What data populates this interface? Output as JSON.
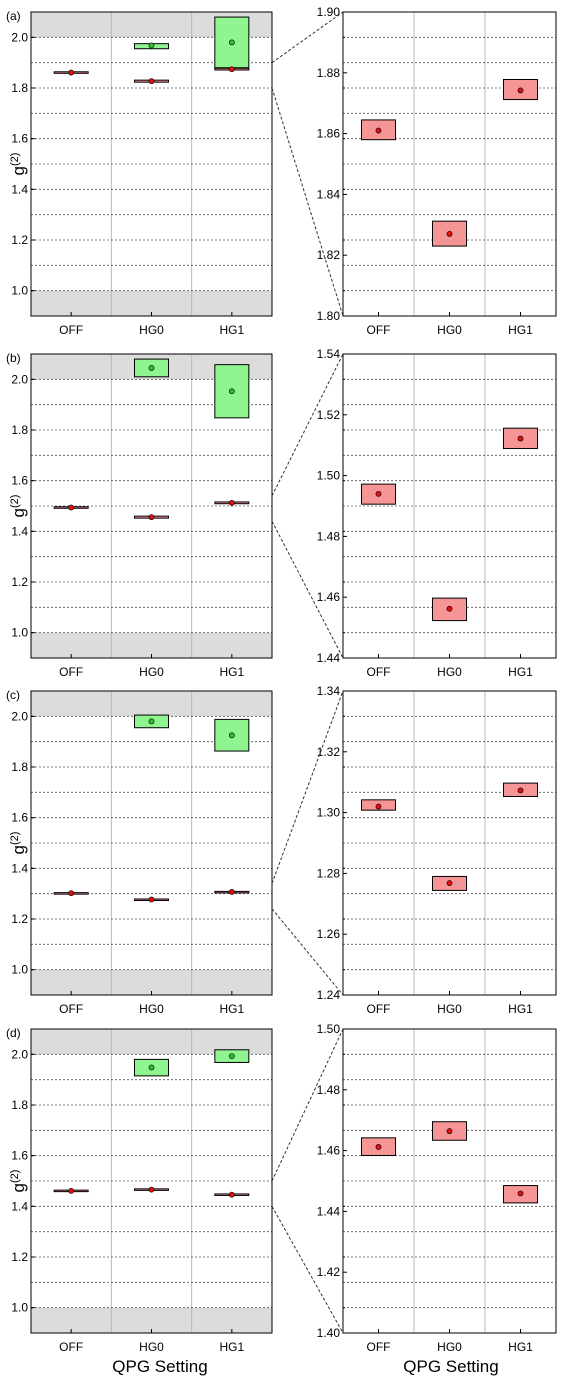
{
  "figure": {
    "xlabel": "QPG Setting",
    "ylabel": "g(2)",
    "categories": [
      "OFF",
      "HG0",
      "HG1"
    ],
    "colors": {
      "red_fill": "#f59595",
      "red_dot": "#e01010",
      "green_fill": "#90f590",
      "green_dot": "#2fbf2f",
      "shade": "#dcdcdc"
    }
  },
  "chart_data": [
    {
      "panel": "(a)",
      "type": "box",
      "ylim": [
        0.9,
        2.1
      ],
      "yticks": [
        "1.0",
        "1.2",
        "1.4",
        "1.6",
        "1.8",
        "2.0"
      ],
      "red": [
        {
          "x": "OFF",
          "value": 1.861,
          "low": 1.858,
          "high": 1.864
        },
        {
          "x": "HG0",
          "value": 1.827,
          "low": 1.823,
          "high": 1.831
        },
        {
          "x": "HG1",
          "value": 1.874,
          "low": 1.871,
          "high": 1.878
        }
      ],
      "green": [
        {
          "x": "HG0",
          "value": 1.968,
          "low": 1.955,
          "high": 1.975
        },
        {
          "x": "HG1",
          "value": 1.98,
          "low": 1.88,
          "high": 2.08
        }
      ]
    },
    {
      "panel": "",
      "type": "box",
      "ylim": [
        1.8,
        1.9
      ],
      "yticks": [
        "1.80",
        "1.82",
        "1.84",
        "1.86",
        "1.88",
        "1.90"
      ],
      "red": [
        {
          "x": "OFF",
          "value": 1.861,
          "low": 1.858,
          "high": 1.8645
        },
        {
          "x": "HG0",
          "value": 1.827,
          "low": 1.823,
          "high": 1.8312
        },
        {
          "x": "HG1",
          "value": 1.8742,
          "low": 1.8712,
          "high": 1.8778
        }
      ]
    },
    {
      "panel": "(b)",
      "type": "box",
      "ylim": [
        0.9,
        2.1
      ],
      "yticks": [
        "1.0",
        "1.2",
        "1.4",
        "1.6",
        "1.8",
        "2.0"
      ],
      "red": [
        {
          "x": "OFF",
          "value": 1.494,
          "low": 1.491,
          "high": 1.497
        },
        {
          "x": "HG0",
          "value": 1.456,
          "low": 1.452,
          "high": 1.46
        },
        {
          "x": "HG1",
          "value": 1.512,
          "low": 1.509,
          "high": 1.516
        }
      ],
      "green": [
        {
          "x": "HG0",
          "value": 2.045,
          "low": 2.01,
          "high": 2.08
        },
        {
          "x": "HG1",
          "value": 1.953,
          "low": 1.848,
          "high": 2.058
        }
      ]
    },
    {
      "panel": "",
      "type": "box",
      "ylim": [
        1.44,
        1.54
      ],
      "yticks": [
        "1.44",
        "1.46",
        "1.48",
        "1.50",
        "1.52",
        "1.54"
      ],
      "red": [
        {
          "x": "OFF",
          "value": 1.494,
          "low": 1.4906,
          "high": 1.4972
        },
        {
          "x": "HG0",
          "value": 1.4562,
          "low": 1.4523,
          "high": 1.4597
        },
        {
          "x": "HG1",
          "value": 1.5122,
          "low": 1.5089,
          "high": 1.5156
        }
      ]
    },
    {
      "panel": "(c)",
      "type": "box",
      "ylim": [
        0.9,
        2.1
      ],
      "yticks": [
        "1.0",
        "1.2",
        "1.4",
        "1.6",
        "1.8",
        "2.0"
      ],
      "red": [
        {
          "x": "OFF",
          "value": 1.302,
          "low": 1.3,
          "high": 1.304
        },
        {
          "x": "HG0",
          "value": 1.277,
          "low": 1.274,
          "high": 1.279
        },
        {
          "x": "HG1",
          "value": 1.307,
          "low": 1.305,
          "high": 1.309
        }
      ],
      "green": [
        {
          "x": "HG0",
          "value": 1.98,
          "low": 1.955,
          "high": 2.005
        },
        {
          "x": "HG1",
          "value": 1.925,
          "low": 1.863,
          "high": 1.988
        }
      ]
    },
    {
      "panel": "",
      "type": "box",
      "ylim": [
        1.24,
        1.34
      ],
      "yticks": [
        "1.24",
        "1.26",
        "1.28",
        "1.30",
        "1.32",
        "1.34"
      ],
      "red": [
        {
          "x": "OFF",
          "value": 1.302,
          "low": 1.3008,
          "high": 1.3042
        },
        {
          "x": "HG0",
          "value": 1.2768,
          "low": 1.2744,
          "high": 1.279
        },
        {
          "x": "HG1",
          "value": 1.3073,
          "low": 1.3053,
          "high": 1.3097
        }
      ]
    },
    {
      "panel": "(d)",
      "type": "box",
      "ylim": [
        0.9,
        2.1
      ],
      "yticks": [
        "1.0",
        "1.2",
        "1.4",
        "1.6",
        "1.8",
        "2.0"
      ],
      "red": [
        {
          "x": "OFF",
          "value": 1.461,
          "low": 1.458,
          "high": 1.464
        },
        {
          "x": "HG0",
          "value": 1.466,
          "low": 1.463,
          "high": 1.469
        },
        {
          "x": "HG1",
          "value": 1.446,
          "low": 1.443,
          "high": 1.449
        }
      ],
      "green": [
        {
          "x": "HG0",
          "value": 1.948,
          "low": 1.915,
          "high": 1.98
        },
        {
          "x": "HG1",
          "value": 1.993,
          "low": 1.968,
          "high": 2.018
        }
      ]
    },
    {
      "panel": "",
      "type": "box",
      "ylim": [
        1.4,
        1.5
      ],
      "yticks": [
        "1.40",
        "1.42",
        "1.44",
        "1.46",
        "1.48",
        "1.50"
      ],
      "red": [
        {
          "x": "OFF",
          "value": 1.4612,
          "low": 1.4584,
          "high": 1.4642
        },
        {
          "x": "HG0",
          "value": 1.4664,
          "low": 1.4634,
          "high": 1.4695
        },
        {
          "x": "HG1",
          "value": 1.4459,
          "low": 1.4428,
          "high": 1.4485
        }
      ]
    }
  ]
}
